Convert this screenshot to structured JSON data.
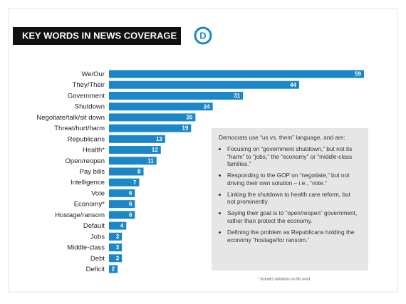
{
  "chart_data": {
    "type": "bar",
    "orientation": "horizontal",
    "title": "KEY WORDS IN NEWS COVERAGE",
    "logo": "D",
    "categories": [
      "We/Our",
      "They/Their",
      "Government",
      "Shutdown",
      "Negotiate/talk/sit down",
      "Threat/hurt/harm",
      "Republicans",
      "Health*",
      "Open/reopen",
      "Pay bills",
      "Intelligence",
      "Vote",
      "Economy*",
      "Hostage/ransom",
      "Default",
      "Jobs",
      "Middle-class",
      "Debt",
      "Deficit"
    ],
    "values": [
      59,
      44,
      31,
      24,
      20,
      19,
      13,
      12,
      11,
      8,
      7,
      6,
      6,
      6,
      4,
      3,
      3,
      3,
      2
    ],
    "color": "#1b87c6",
    "callout": {
      "intro": "Democrats use “us vs. them” language, and are:",
      "bullets": [
        "Focusing on “government shutdown,” but not its “harm” to “jobs,” the “economy” or “middle-class families.”",
        "Responding to the GOP on “negotiate,” but not driving their own solution – i.e., “vote.”",
        "Linking the shutdown to health care reform, but not prominently.",
        "Saying their goal is to “open/reopen” government, rather than protect the economy.",
        "Defining the problem as Republicans holding the economy “hostage/for ransom.”"
      ]
    },
    "footnote": "* Includes variations on this word"
  }
}
